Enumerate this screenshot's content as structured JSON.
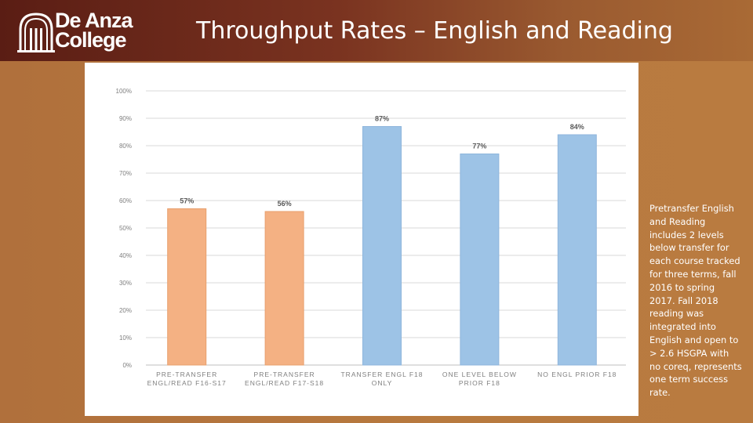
{
  "header": {
    "logo_line1": "De Anza",
    "logo_line2": "College",
    "title": "Throughput Rates – English and Reading"
  },
  "note": "Pretransfer English and Reading includes 2 levels below transfer for each course tracked for three terms, fall 2016 to spring 2017. Fall 2018 reading was integrated into English and open to > 2.6 HSGPA with no coreq, represents one term success rate.",
  "colors": {
    "orange_bar": "#f4b183",
    "blue_bar": "#9dc3e6"
  },
  "chart_data": {
    "type": "bar",
    "categories": [
      [
        "PRE-TRANSFER",
        "ENGL/READ F16-S17"
      ],
      [
        "PRE-TRANSFER",
        "ENGL/READ F17-S18"
      ],
      [
        "TRANSFER ENGL F18",
        "ONLY"
      ],
      [
        "ONE LEVEL BELOW",
        "PRIOR F18"
      ],
      [
        "NO ENGL PRIOR F18"
      ]
    ],
    "values": [
      57,
      56,
      87,
      77,
      84
    ],
    "data_labels": [
      "57%",
      "56%",
      "87%",
      "77%",
      "84%"
    ],
    "bar_colors": [
      "#f4b183",
      "#f4b183",
      "#9dc3e6",
      "#9dc3e6",
      "#9dc3e6"
    ],
    "ylim": [
      0,
      100
    ],
    "yticks": [
      "0%",
      "10%",
      "20%",
      "30%",
      "40%",
      "50%",
      "60%",
      "70%",
      "80%",
      "90%",
      "100%"
    ],
    "grid": true,
    "title": "",
    "xlabel": "",
    "ylabel": ""
  }
}
